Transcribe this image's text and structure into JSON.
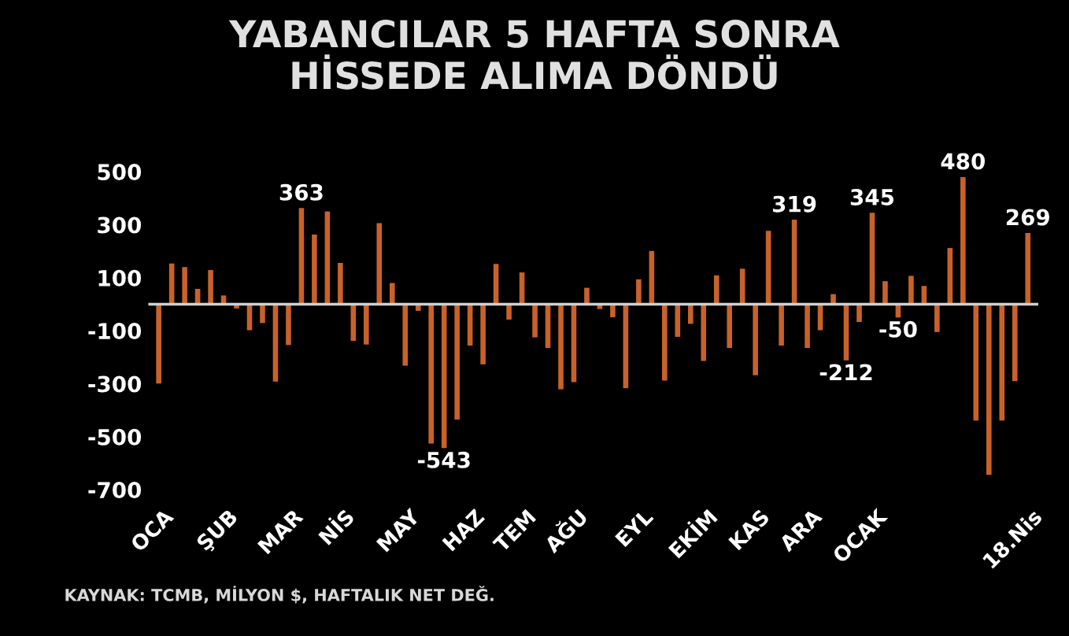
{
  "chart_data": {
    "type": "bar",
    "title": "YABANCILAR 5 HAFTA SONRA\nHİSSEDE ALIMA DÖNDÜ",
    "categories": [
      "OCA",
      null,
      null,
      null,
      null,
      "ŞUB",
      null,
      null,
      null,
      null,
      "MAR",
      null,
      null,
      null,
      "NİS",
      null,
      null,
      null,
      null,
      "MAY",
      null,
      null,
      null,
      null,
      "HAZ",
      null,
      null,
      null,
      "TEM",
      null,
      null,
      null,
      "AĞU",
      null,
      null,
      null,
      null,
      "EYL",
      null,
      null,
      null,
      null,
      "EKİM",
      null,
      null,
      null,
      "KAS",
      null,
      null,
      null,
      "ARA",
      null,
      null,
      null,
      null,
      "OCAK",
      null,
      null,
      null,
      null,
      null,
      null,
      null,
      null,
      null,
      null,
      null,
      "18.Nis"
    ],
    "values": [
      -299,
      154,
      140,
      58,
      129,
      33,
      -16,
      -98,
      -71,
      -292,
      -154,
      363,
      263,
      350,
      156,
      -138,
      -152,
      306,
      80,
      -232,
      -25,
      -526,
      -543,
      -435,
      -156,
      -227,
      152,
      -58,
      120,
      -125,
      -165,
      -321,
      -294,
      62,
      -18,
      -49,
      -317,
      94,
      201,
      -288,
      -123,
      -74,
      -214,
      109,
      -165,
      134,
      -268,
      277,
      -156,
      319,
      -165,
      -98,
      38,
      -212,
      -67,
      345,
      87,
      -50,
      107,
      69,
      -105,
      212,
      480,
      -439,
      -644,
      -439,
      -290,
      269
    ],
    "value_labels": [
      null,
      null,
      null,
      null,
      null,
      null,
      null,
      null,
      null,
      null,
      null,
      "363",
      null,
      null,
      null,
      null,
      null,
      null,
      null,
      null,
      null,
      null,
      "-543",
      null,
      null,
      null,
      null,
      null,
      null,
      null,
      null,
      null,
      null,
      null,
      null,
      null,
      null,
      null,
      null,
      null,
      null,
      null,
      null,
      null,
      null,
      null,
      null,
      null,
      null,
      "319",
      null,
      null,
      null,
      "-212",
      null,
      "345",
      null,
      "-50",
      null,
      null,
      null,
      null,
      "480",
      null,
      null,
      null,
      null,
      "269"
    ],
    "color": "#c8622a",
    "ylim": [
      -700,
      500
    ],
    "yticks": [
      500,
      300,
      100,
      -100,
      -300,
      -500,
      -700
    ],
    "grid": false,
    "legend": false,
    "annotations": [
      "KAYNAK: TCMB, MİLYON $, HAFTALIK NET DEĞ."
    ]
  }
}
